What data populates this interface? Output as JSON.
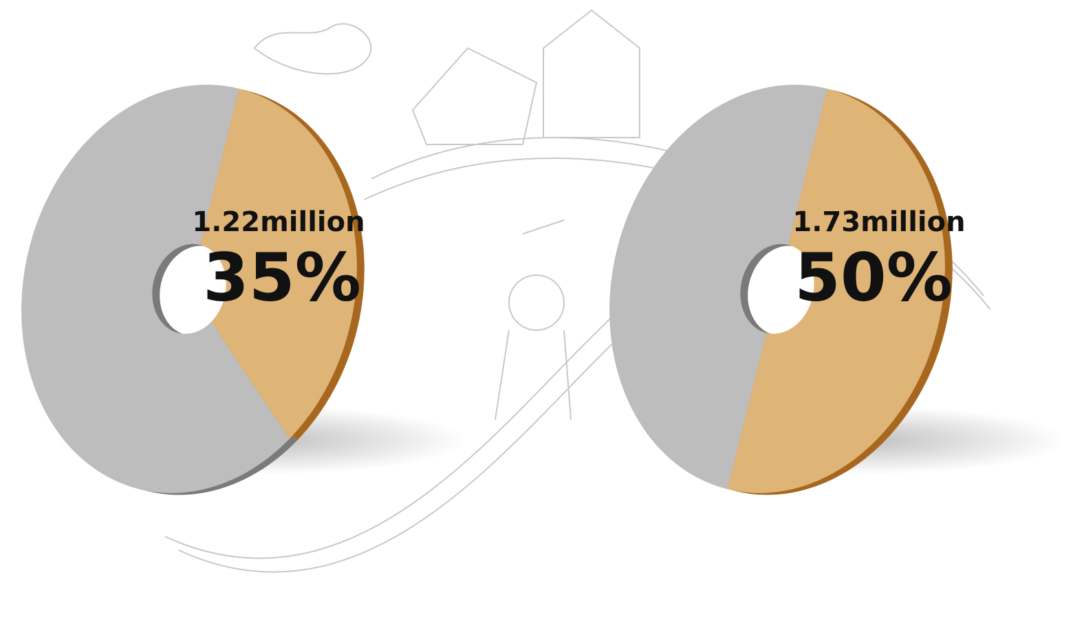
{
  "chart_data": [
    {
      "type": "pie",
      "annotation": "1.22million",
      "categories": [
        null,
        null
      ],
      "values": [
        35,
        65
      ],
      "value_labels": [
        "35%",
        null
      ],
      "colors": [
        "#deb477",
        "#bdbdbd"
      ],
      "edge_colors": [
        "#a8671f",
        "#7a7a7a"
      ]
    },
    {
      "type": "pie",
      "annotation": "1.73million",
      "categories": [
        null,
        null
      ],
      "values": [
        50,
        50
      ],
      "value_labels": [
        "50%",
        null
      ],
      "colors": [
        "#deb477",
        "#bdbdbd"
      ],
      "edge_colors": [
        "#a8671f",
        "#7a7a7a"
      ]
    }
  ]
}
